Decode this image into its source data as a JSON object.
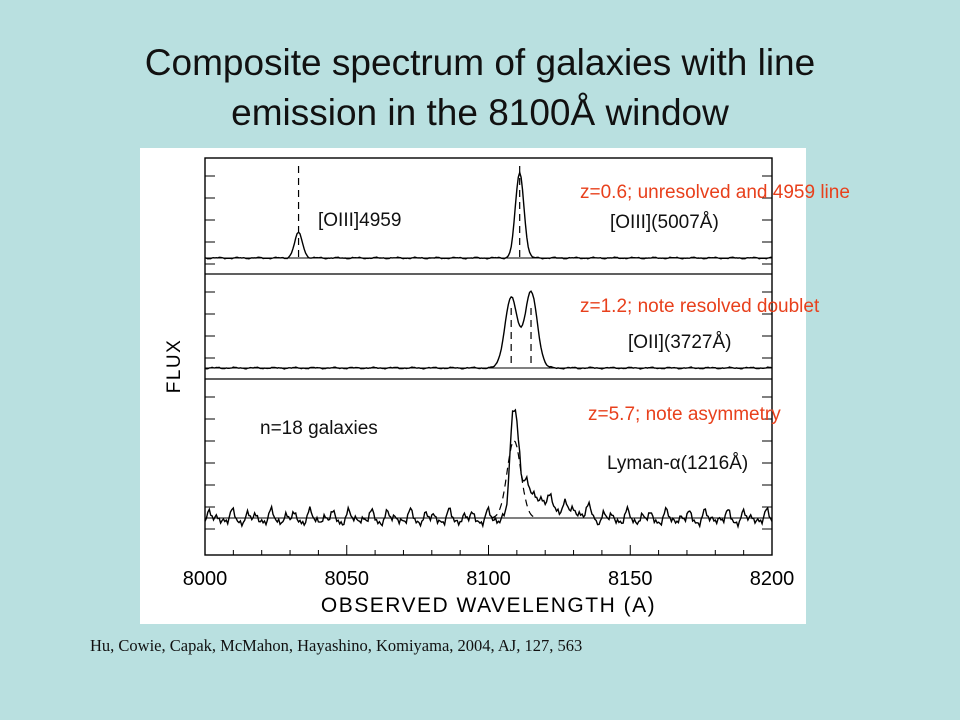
{
  "slide": {
    "title_line1": "Composite spectrum of galaxies with line",
    "title_line2": "emission in the 8100Å window",
    "citation": "Hu, Cowie, Capak, McMahon, Hayashino, Komiyama, 2004, AJ, 127, 563"
  },
  "colors": {
    "background": "#b9e0e0",
    "annotation_red": "#e8401c",
    "plot_ink": "#000000"
  },
  "chart_data": {
    "type": "line",
    "xlabel": "OBSERVED WAVELENGTH (A)",
    "ylabel": "FLUX",
    "xlim": [
      8000,
      8200
    ],
    "x_ticks": [
      8000,
      8050,
      8100,
      8150,
      8200
    ],
    "panels": [
      {
        "line_label": "[OIII](5007Å)",
        "note": "z=0.6; unresolved and 4959 line",
        "secondary_label": "[OIII]4959",
        "markers_x": [
          8033,
          8111
        ],
        "peaks": [
          {
            "center": 8033,
            "amplitude": 0.28,
            "width": 1.4
          },
          {
            "center": 8111,
            "amplitude": 0.95,
            "width": 1.5
          }
        ]
      },
      {
        "line_label": "[OII](3727Å)",
        "note": "z=1.2; note resolved doublet",
        "markers_x": [
          8108,
          8115
        ],
        "peaks": [
          {
            "center": 8108,
            "amplitude": 0.74,
            "width": 2.2
          },
          {
            "center": 8115,
            "amplitude": 0.8,
            "width": 2.2
          }
        ]
      },
      {
        "line_label": "Lyman-α(1216Å)",
        "note": "z=5.7; note asymmetry",
        "sample": "n=18 galaxies",
        "peak_center": 8109,
        "peak_amplitude": 0.98,
        "red_wing_extent": 8138
      }
    ]
  }
}
